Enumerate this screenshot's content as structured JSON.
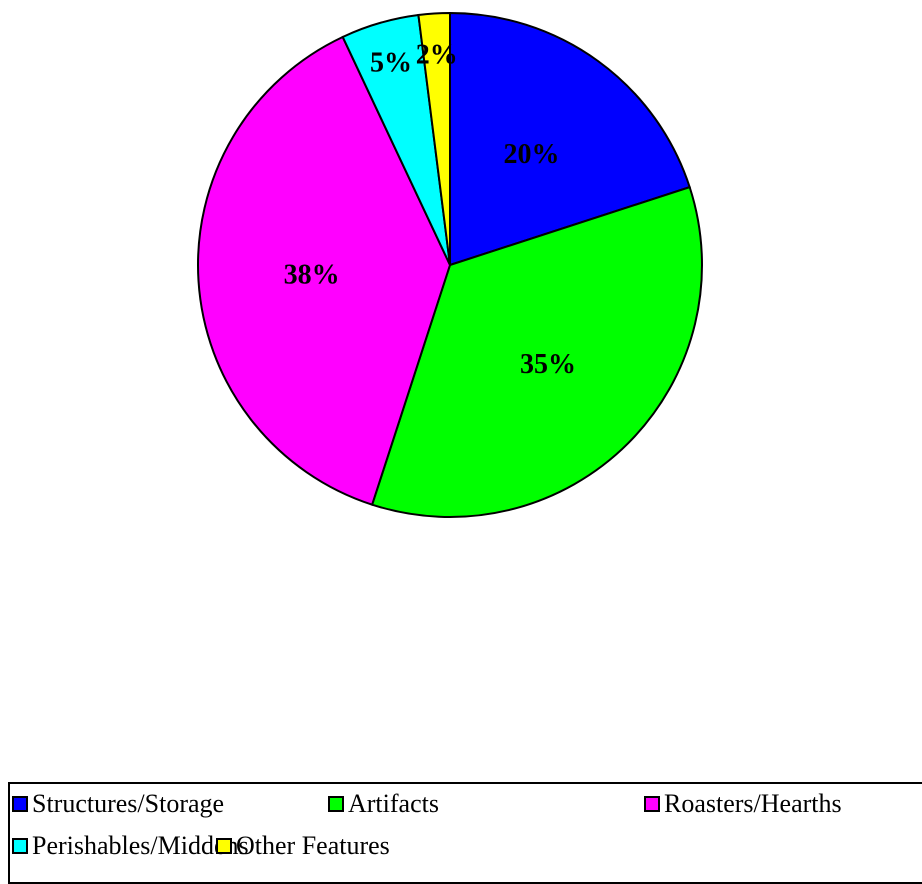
{
  "chart_data": {
    "type": "pie",
    "title": "",
    "slices": [
      {
        "label": "Structures/Storage",
        "value": 20,
        "display": "20%",
        "color": "#0000FF"
      },
      {
        "label": "Artifacts",
        "value": 35,
        "display": "35%",
        "color": "#00FF00"
      },
      {
        "label": "Roasters/Hearths",
        "value": 38,
        "display": "38%",
        "color": "#FF00FF"
      },
      {
        "label": "Perishables/Middens",
        "value": 5,
        "display": "5%",
        "color": "#00FFFF"
      },
      {
        "label": "Other Features",
        "value": 2,
        "display": "2%",
        "color": "#FFFF00"
      }
    ],
    "start_angle_deg": 0,
    "direction": "clockwise",
    "legend_position": "bottom"
  }
}
